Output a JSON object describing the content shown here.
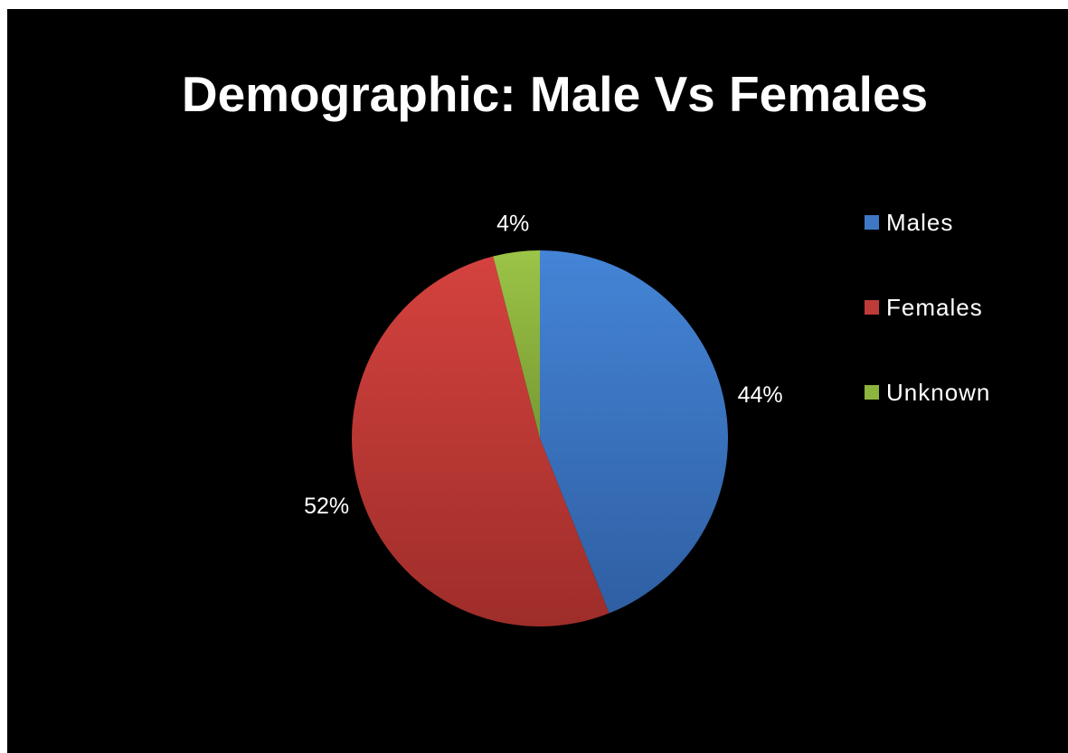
{
  "chart_data": {
    "type": "pie",
    "title": "Demographic: Male Vs Females",
    "categories": [
      "Males",
      "Females",
      "Unknown"
    ],
    "values": [
      44,
      52,
      4
    ],
    "data_labels": [
      "44%",
      "52%",
      "4%"
    ],
    "colors": [
      "#3E78C4",
      "#BF3B38",
      "#8DB43E"
    ],
    "legend_position": "right"
  }
}
